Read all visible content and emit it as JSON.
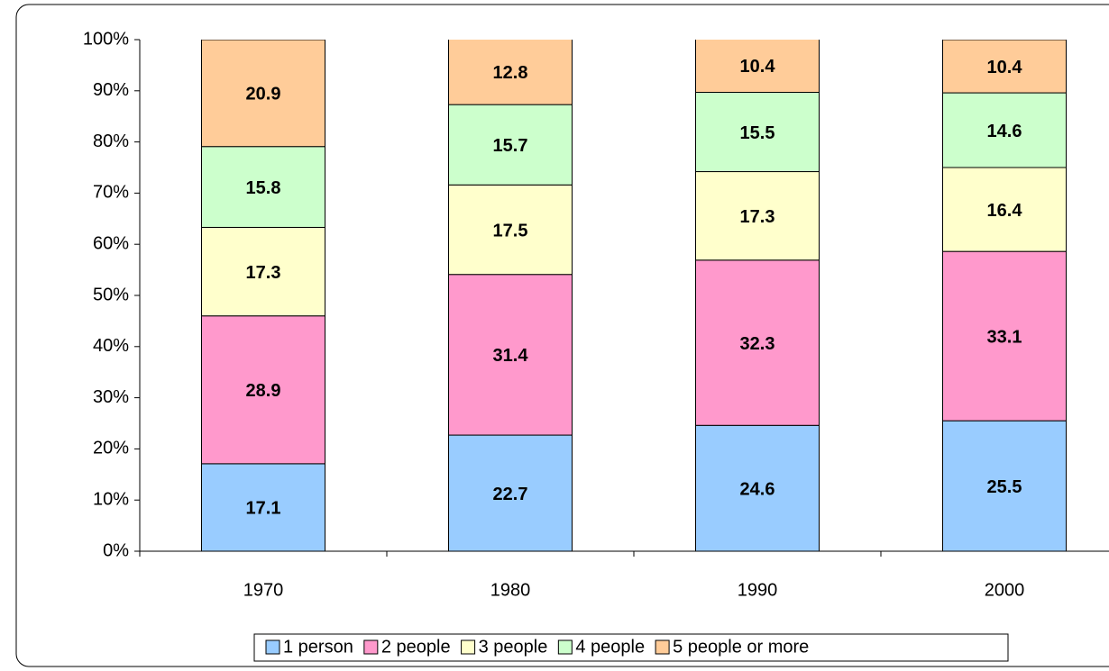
{
  "chart_data": {
    "type": "stacked_bar",
    "categories": [
      "1970",
      "1980",
      "1990",
      "2000"
    ],
    "series": [
      {
        "name": "1 person",
        "color": "#99ccff",
        "values": [
          17.1,
          22.7,
          24.6,
          25.5
        ]
      },
      {
        "name": "2 people",
        "color": "#ff99cc",
        "values": [
          28.9,
          31.4,
          32.3,
          33.1
        ]
      },
      {
        "name": "3 people",
        "color": "#ffffcc",
        "values": [
          17.3,
          17.5,
          17.3,
          16.4
        ]
      },
      {
        "name": "4 people",
        "color": "#ccffcc",
        "values": [
          15.8,
          15.7,
          15.5,
          14.6
        ]
      },
      {
        "name": "5 people or more",
        "color": "#ffcc99",
        "values": [
          20.9,
          12.8,
          10.4,
          10.4
        ]
      }
    ],
    "ylim": [
      0,
      100
    ],
    "yticks": [
      {
        "value": 0,
        "label": "0%"
      },
      {
        "value": 10,
        "label": "10%"
      },
      {
        "value": 20,
        "label": "20%"
      },
      {
        "value": 30,
        "label": "30%"
      },
      {
        "value": 40,
        "label": "40%"
      },
      {
        "value": 50,
        "label": "50%"
      },
      {
        "value": 60,
        "label": "60%"
      },
      {
        "value": 70,
        "label": "70%"
      },
      {
        "value": 80,
        "label": "80%"
      },
      {
        "value": 90,
        "label": "90%"
      },
      {
        "value": 100,
        "label": "100%"
      }
    ],
    "legend": "bottom"
  }
}
